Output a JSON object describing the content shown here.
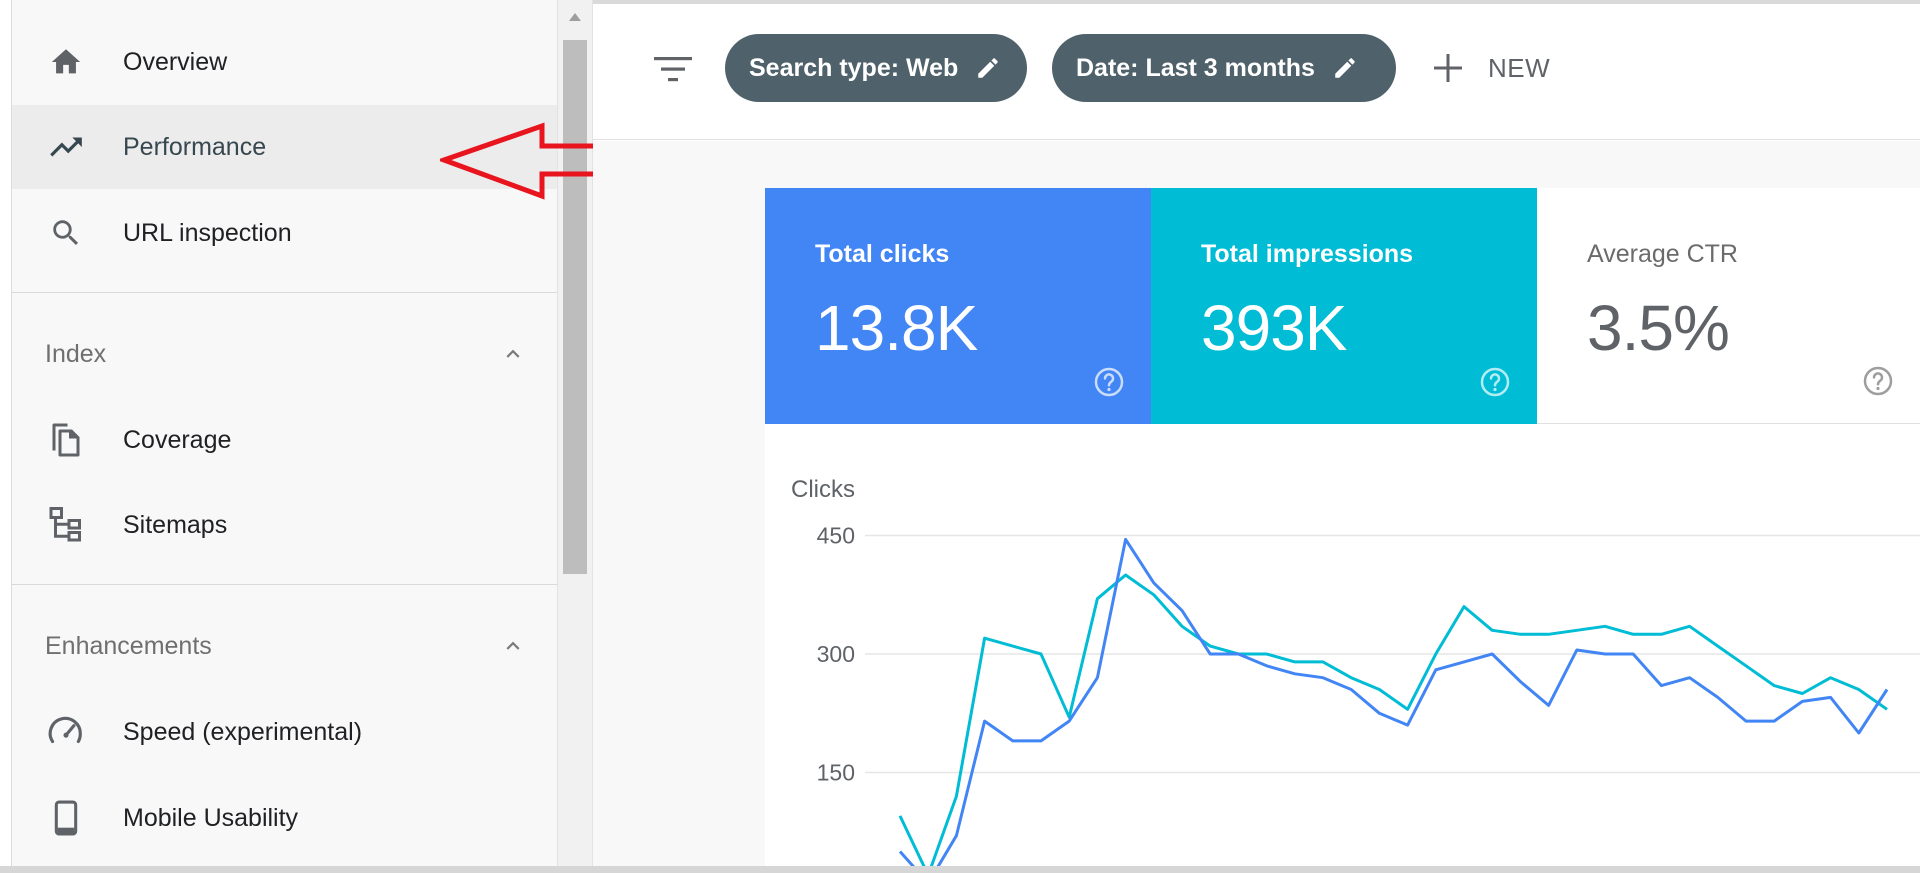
{
  "sidebar": {
    "items": [
      {
        "label": "Overview",
        "icon": "home-icon"
      },
      {
        "label": "Performance",
        "icon": "trending-up-icon",
        "active": true
      },
      {
        "label": "URL inspection",
        "icon": "search-icon"
      }
    ],
    "sections": [
      {
        "title": "Index",
        "expanded": true,
        "items": [
          {
            "label": "Coverage",
            "icon": "pages-icon"
          },
          {
            "label": "Sitemaps",
            "icon": "sitemap-icon"
          }
        ]
      },
      {
        "title": "Enhancements",
        "expanded": true,
        "items": [
          {
            "label": "Speed (experimental)",
            "icon": "speedometer-icon"
          },
          {
            "label": "Mobile Usability",
            "icon": "smartphone-icon"
          }
        ]
      }
    ]
  },
  "toolbar": {
    "filters": [
      {
        "label": "Search type: Web"
      },
      {
        "label": "Date: Last 3 months"
      }
    ],
    "new_label": "NEW"
  },
  "metrics": [
    {
      "label": "Total clicks",
      "value": "13.8K"
    },
    {
      "label": "Total impressions",
      "value": "393K"
    },
    {
      "label": "Average CTR",
      "value": "3.5%"
    }
  ],
  "colors": {
    "clicks": "#4285f4",
    "impressions": "#00bcd4",
    "chip_bg": "#4f616a",
    "annotation_arrow": "#e8141e"
  },
  "chart_data": {
    "type": "line",
    "ylabel": "Clicks",
    "yticks": [
      150,
      300,
      450
    ],
    "ylim": [
      0,
      450
    ],
    "grid": true,
    "series": [
      {
        "values": [
          50,
          10,
          70,
          215,
          190,
          190,
          215,
          270,
          445,
          390,
          355,
          300,
          300,
          285,
          275,
          270,
          255,
          225,
          210,
          280,
          290,
          300,
          265,
          235,
          305,
          300,
          300,
          260,
          270,
          245,
          215,
          215,
          240,
          245,
          200,
          255
        ]
      },
      {
        "values": [
          95,
          20,
          120,
          320,
          310,
          300,
          220,
          370,
          400,
          375,
          335,
          310,
          300,
          300,
          290,
          290,
          270,
          255,
          230,
          300,
          360,
          330,
          325,
          325,
          330,
          335,
          325,
          325,
          335,
          310,
          285,
          260,
          250,
          270,
          255,
          230
        ]
      }
    ]
  }
}
